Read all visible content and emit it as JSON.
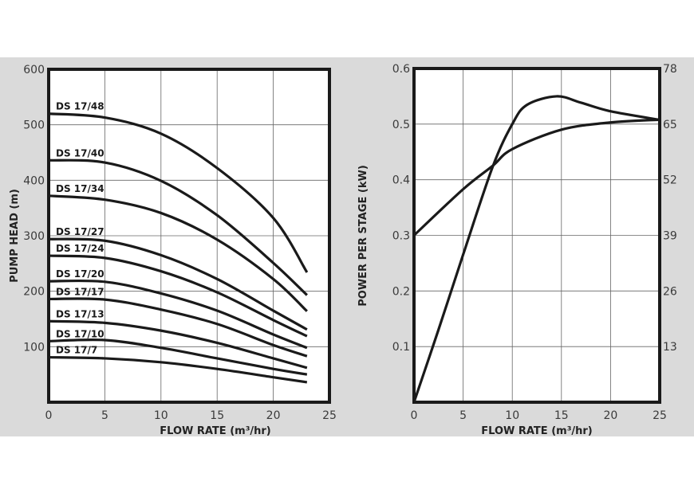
{
  "colors": {
    "background_band": "#dadada",
    "plot_bg": "#ffffff",
    "line": "#1a1a1a",
    "grid": "#555555"
  },
  "chart_data": [
    {
      "type": "line",
      "xlabel": "FLOW RATE (m³/hr)",
      "ylabel": "PUMP HEAD (m)",
      "xlim": [
        0,
        25
      ],
      "ylim": [
        0,
        600
      ],
      "xticks": [
        "0",
        "5",
        "10",
        "15",
        "20",
        "25"
      ],
      "yticks": [
        "100",
        "200",
        "300",
        "400",
        "500",
        "600"
      ],
      "grid": true,
      "x": [
        0,
        5,
        10,
        15,
        20,
        23
      ],
      "series": [
        {
          "name": "DS 17/48",
          "values": [
            520,
            513,
            484,
            422,
            332,
            234
          ]
        },
        {
          "name": "DS 17/40",
          "values": [
            436,
            432,
            399,
            337,
            251,
            193
          ]
        },
        {
          "name": "DS 17/34",
          "values": [
            372,
            365,
            341,
            293,
            222,
            164
          ]
        },
        {
          "name": "DS 17/27",
          "values": [
            294,
            291,
            265,
            222,
            165,
            131
          ]
        },
        {
          "name": "DS 17/24",
          "values": [
            264,
            260,
            236,
            198,
            148,
            119
          ]
        },
        {
          "name": "DS 17/20",
          "values": [
            218,
            217,
            196,
            165,
            122,
            98
          ]
        },
        {
          "name": "DS 17/17",
          "values": [
            186,
            185,
            167,
            141,
            103,
            83
          ]
        },
        {
          "name": "DS 17/13",
          "values": [
            146,
            143,
            129,
            107,
            79,
            62
          ]
        },
        {
          "name": "DS 17/10",
          "values": [
            110,
            112,
            98,
            79,
            60,
            50
          ]
        },
        {
          "name": "DS 17/7",
          "values": [
            81,
            79,
            72,
            60,
            45,
            36
          ]
        }
      ]
    },
    {
      "type": "line",
      "xlabel": "FLOW RATE (m³/hr)",
      "ylabel": "POWER PER STAGE (kW)",
      "xlim": [
        0,
        25
      ],
      "ylim": [
        0,
        0.6
      ],
      "y2lim": [
        0,
        78
      ],
      "xticks": [
        "0",
        "5",
        "10",
        "15",
        "20",
        "25"
      ],
      "yticks": [
        "0.1",
        "0.2",
        "0.3",
        "0.4",
        "0.5",
        "0.6"
      ],
      "y2ticks": [
        "13",
        "26",
        "39",
        "52",
        "65",
        "78"
      ],
      "grid": true,
      "series": [
        {
          "axis": "left",
          "x": [
            0,
            5,
            8,
            10,
            15,
            20,
            25
          ],
          "values": [
            0.3,
            0.383,
            0.425,
            0.455,
            0.49,
            0.503,
            0.508
          ]
        },
        {
          "axis": "right",
          "x": [
            0,
            2.5,
            5,
            8,
            10,
            11.5,
            14.5,
            17,
            20,
            25
          ],
          "values": [
            0,
            17,
            34.5,
            55,
            65,
            69.5,
            71.5,
            70,
            68,
            66
          ]
        }
      ]
    }
  ]
}
